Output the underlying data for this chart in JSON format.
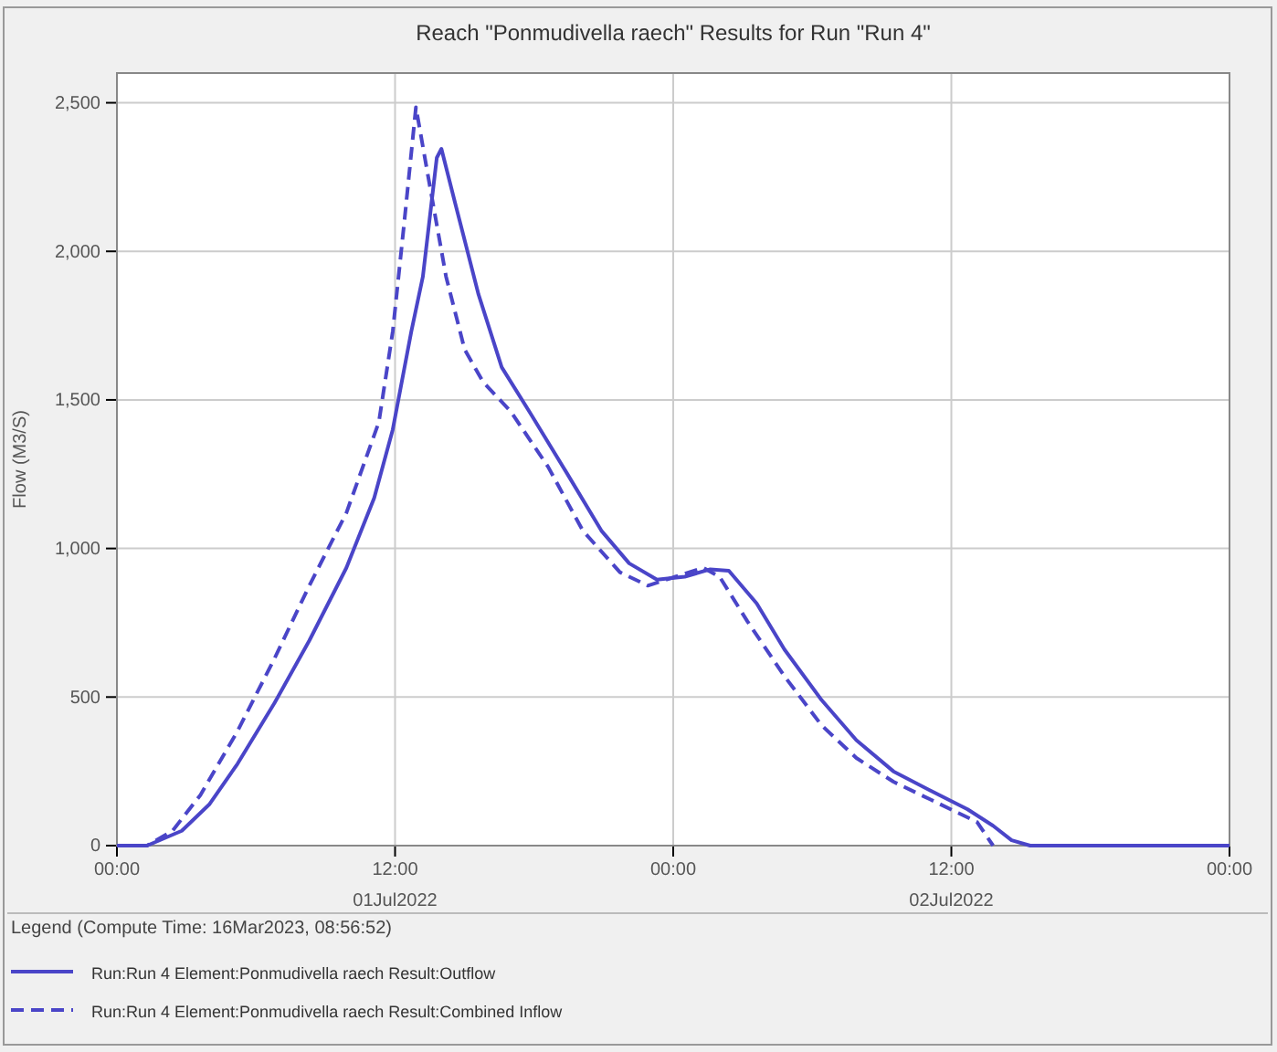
{
  "chart_data": {
    "type": "line",
    "title": "Reach \"Ponmudivella raech\" Results for Run \"Run 4\"",
    "ylabel": "Flow (M3/S)",
    "legend_title": "Legend (Compute Time: 16Mar2023, 08:56:52)",
    "legend": "bottom",
    "grid": true,
    "marker": "none",
    "xlim": [
      "2022-07-01T00:00",
      "2022-07-03T00:00"
    ],
    "xticks": [
      {
        "value": "2022-07-01T00:00",
        "label": "00:00"
      },
      {
        "value": "2022-07-01T12:00",
        "label": "12:00\n01Jul2022"
      },
      {
        "value": "2022-07-02T00:00",
        "label": "00:00"
      },
      {
        "value": "2022-07-02T12:00",
        "label": "12:00\n02Jul2022"
      },
      {
        "value": "2022-07-03T00:00",
        "label": "00:00"
      }
    ],
    "ylim": [
      0,
      2600
    ],
    "yticks": [
      {
        "value": 0,
        "label": "0"
      },
      {
        "value": 500,
        "label": "500"
      },
      {
        "value": 1000,
        "label": "1,000"
      },
      {
        "value": 1500,
        "label": "1,500"
      },
      {
        "value": 2000,
        "label": "2,000"
      },
      {
        "value": 2500,
        "label": "2,500"
      }
    ],
    "series": [
      {
        "name": "Run:Run 4 Element:Ponmudivella raech Result:Outflow",
        "color": "#4a45c8",
        "line_style": "solid",
        "x": [
          "2022-07-01T00:00",
          "2022-07-01T01:18",
          "2022-07-01T02:48",
          "2022-07-01T04:00",
          "2022-07-01T05:12",
          "2022-07-01T06:48",
          "2022-07-01T08:18",
          "2022-07-01T09:54",
          "2022-07-01T11:06",
          "2022-07-01T11:54",
          "2022-07-01T12:42",
          "2022-07-01T13:12",
          "2022-07-01T13:48",
          "2022-07-01T14:00",
          "2022-07-01T14:36",
          "2022-07-01T15:36",
          "2022-07-01T16:36",
          "2022-07-01T17:48",
          "2022-07-01T19:24",
          "2022-07-01T20:54",
          "2022-07-01T22:06",
          "2022-07-01T23:18",
          "2022-07-02T00:30",
          "2022-07-02T01:36",
          "2022-07-02T02:24",
          "2022-07-02T03:36",
          "2022-07-02T04:48",
          "2022-07-02T06:24",
          "2022-07-02T07:54",
          "2022-07-02T09:30",
          "2022-07-02T11:06",
          "2022-07-02T12:42",
          "2022-07-02T13:48",
          "2022-07-02T14:36",
          "2022-07-02T15:24",
          "2022-07-03T00:00"
        ],
        "values": [
          0,
          0,
          50,
          140,
          275,
          480,
          690,
          935,
          1170,
          1400,
          1730,
          1915,
          2315,
          2345,
          2160,
          1855,
          1610,
          1460,
          1255,
          1060,
          950,
          895,
          905,
          930,
          925,
          815,
          660,
          490,
          355,
          250,
          185,
          122,
          67,
          18,
          0,
          0
        ]
      },
      {
        "name": "Run:Run 4 Element:Ponmudivella raech Result:Combined Inflow",
        "color": "#4a45c8",
        "line_style": "dashed",
        "x": [
          "2022-07-01T00:00",
          "2022-07-01T01:18",
          "2022-07-01T02:24",
          "2022-07-01T03:36",
          "2022-07-01T05:12",
          "2022-07-01T06:48",
          "2022-07-01T08:18",
          "2022-07-01T09:54",
          "2022-07-01T11:18",
          "2022-07-01T11:54",
          "2022-07-01T12:24",
          "2022-07-01T12:54",
          "2022-07-01T13:30",
          "2022-07-01T14:12",
          "2022-07-01T15:00",
          "2022-07-01T15:48",
          "2022-07-01T17:00",
          "2022-07-01T18:36",
          "2022-07-01T20:06",
          "2022-07-01T21:42",
          "2022-07-01T22:54",
          "2022-07-02T00:06",
          "2022-07-02T01:18",
          "2022-07-02T02:00",
          "2022-07-02T03:12",
          "2022-07-02T04:48",
          "2022-07-02T06:24",
          "2022-07-02T07:54",
          "2022-07-02T09:30",
          "2022-07-02T11:06",
          "2022-07-02T12:18",
          "2022-07-02T13:06",
          "2022-07-02T13:48"
        ],
        "values": [
          0,
          0,
          50,
          170,
          385,
          630,
          875,
          1120,
          1425,
          1730,
          2100,
          2485,
          2220,
          1915,
          1670,
          1560,
          1460,
          1275,
          1060,
          920,
          875,
          905,
          935,
          905,
          755,
          570,
          405,
          295,
          215,
          155,
          110,
          80,
          0
        ]
      }
    ]
  }
}
